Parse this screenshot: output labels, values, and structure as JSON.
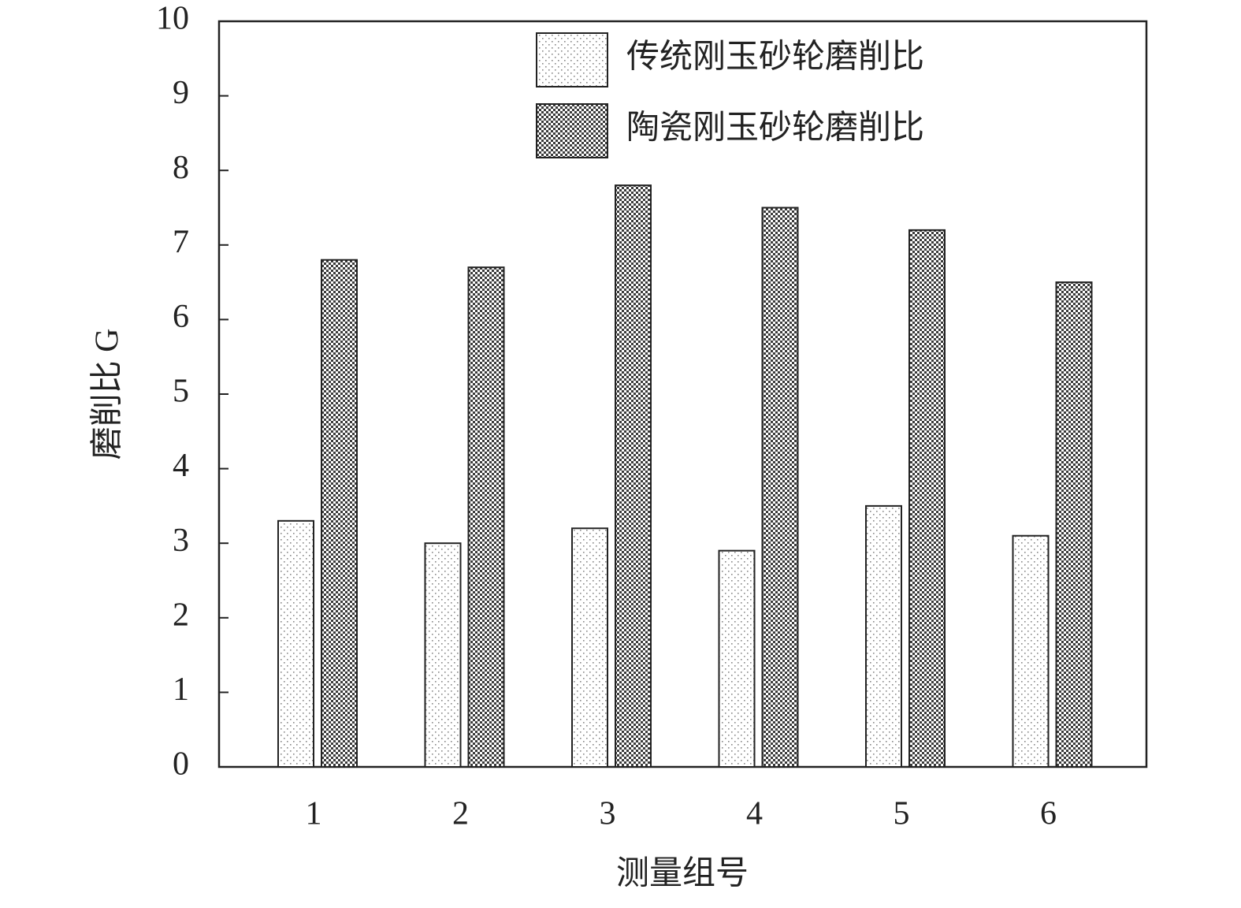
{
  "chart_data": {
    "type": "bar",
    "xlabel": "测量组号",
    "ylabel": "磨削比 G",
    "categories": [
      "1",
      "2",
      "3",
      "4",
      "5",
      "6"
    ],
    "series": [
      {
        "name": "传统刚玉砂轮磨削比",
        "color": "#8a8a8a",
        "values": [
          3.3,
          3.0,
          3.2,
          2.9,
          3.5,
          3.1
        ]
      },
      {
        "name": "陶瓷刚玉砂轮磨削比",
        "color": "#3a3a3a",
        "values": [
          6.8,
          6.7,
          7.8,
          7.5,
          7.2,
          6.5
        ]
      }
    ],
    "ylim": [
      0,
      10
    ],
    "yticks": [
      0,
      1,
      2,
      3,
      4,
      5,
      6,
      7,
      8,
      9,
      10
    ],
    "legend": "upper right",
    "grid": false
  }
}
